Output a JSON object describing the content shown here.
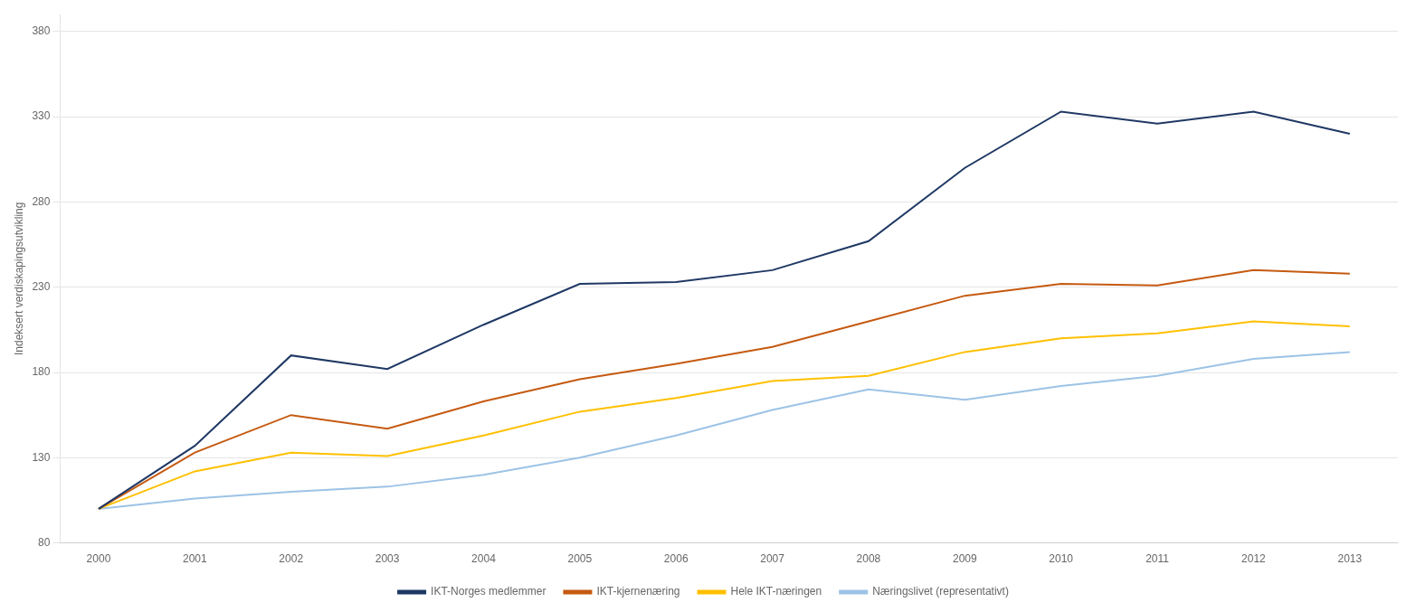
{
  "chart_data": {
    "type": "line",
    "x": [
      2000,
      2001,
      2002,
      2003,
      2004,
      2005,
      2006,
      2007,
      2008,
      2009,
      2010,
      2011,
      2012,
      2013
    ],
    "series": [
      {
        "name": "IKT-Norges medlemmer",
        "color": "#1F3864",
        "values": [
          100,
          137,
          190,
          182,
          208,
          232,
          233,
          240,
          257,
          300,
          333,
          326,
          333,
          320
        ]
      },
      {
        "name": "IKT-kjernenæring",
        "color": "#C55A11",
        "values": [
          100,
          133,
          155,
          147,
          163,
          176,
          185,
          195,
          210,
          225,
          232,
          231,
          240,
          238
        ]
      },
      {
        "name": "Hele IKT-næringen",
        "color": "#FFC000",
        "values": [
          100,
          122,
          133,
          131,
          143,
          157,
          165,
          175,
          178,
          192,
          200,
          203,
          210,
          207
        ]
      },
      {
        "name": "Næringslivet (representativt)",
        "color": "#9DC3E6",
        "values": [
          100,
          106,
          110,
          113,
          120,
          130,
          143,
          158,
          170,
          164,
          172,
          178,
          188,
          192
        ]
      }
    ],
    "ylabel": "Indeksert verdiskapingsutvikling",
    "xlim": [
      1999.6,
      2013.5
    ],
    "xticks": [
      2000,
      2001,
      2002,
      2003,
      2004,
      2005,
      2006,
      2007,
      2008,
      2009,
      2010,
      2011,
      2012,
      2013
    ],
    "ylim": [
      80,
      390
    ],
    "yticks": [
      80,
      130,
      180,
      230,
      280,
      330,
      380
    ],
    "grid": "y",
    "legend": "bottom"
  }
}
